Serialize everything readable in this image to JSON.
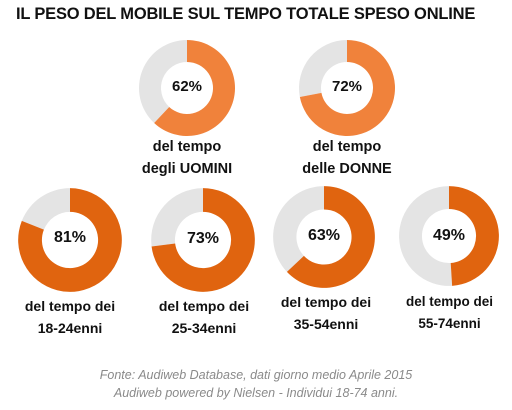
{
  "chart_data": {
    "type": "pie",
    "title": "IL PESO DEL MOBILE SUL TEMPO TOTALE SPESO ONLINE",
    "charts": [
      {
        "value": 62,
        "label": "62%",
        "caption_line1": "del tempo",
        "caption_line2": "degli UOMINI"
      },
      {
        "value": 72,
        "label": "72%",
        "caption_line1": "del tempo",
        "caption_line2": "delle DONNE"
      },
      {
        "value": 81,
        "label": "81%",
        "caption_line1": "del tempo dei",
        "caption_line2": "18-24enni"
      },
      {
        "value": 73,
        "label": "73%",
        "caption_line1": "del tempo dei",
        "caption_line2": "25-34enni"
      },
      {
        "value": 63,
        "label": "63%",
        "caption_line1": "del tempo dei",
        "caption_line2": "35-54enni"
      },
      {
        "value": 49,
        "label": "49%",
        "caption_line1": "del tempo dei",
        "caption_line2": "55-74enni"
      }
    ]
  },
  "colors": {
    "top_row_fill": "#f0823b",
    "bottom_row_fill": "#e0640f",
    "remainder": "#e4e4e4"
  },
  "source": {
    "line1": "Fonte: Audiweb Database, dati giorno medio Aprile 2015",
    "line2": "Audiweb powered by Nielsen - Individui 18-74 anni."
  }
}
